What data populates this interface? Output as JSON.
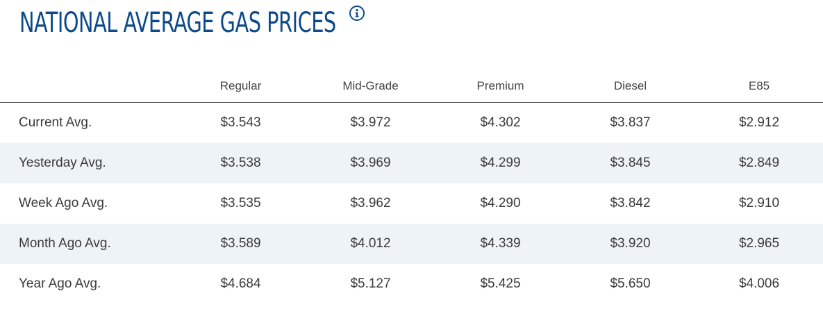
{
  "header": {
    "title": "NATIONAL AVERAGE GAS PRICES",
    "info_icon": "info-circle-icon",
    "title_color": "#0c4a8a"
  },
  "table": {
    "columns": [
      "",
      "Regular",
      "Mid-Grade",
      "Premium",
      "Diesel",
      "E85"
    ],
    "rows": [
      {
        "label": "Current Avg.",
        "values": [
          "$3.543",
          "$3.972",
          "$4.302",
          "$3.837",
          "$2.912"
        ]
      },
      {
        "label": "Yesterday Avg.",
        "values": [
          "$3.538",
          "$3.969",
          "$4.299",
          "$3.845",
          "$2.849"
        ]
      },
      {
        "label": "Week Ago Avg.",
        "values": [
          "$3.535",
          "$3.962",
          "$4.290",
          "$3.842",
          "$2.910"
        ]
      },
      {
        "label": "Month Ago Avg.",
        "values": [
          "$3.589",
          "$4.012",
          "$4.339",
          "$3.920",
          "$2.965"
        ]
      },
      {
        "label": "Year Ago Avg.",
        "values": [
          "$4.684",
          "$5.127",
          "$5.425",
          "$5.650",
          "$4.006"
        ]
      }
    ],
    "stripe_color": "#eef3f8"
  }
}
